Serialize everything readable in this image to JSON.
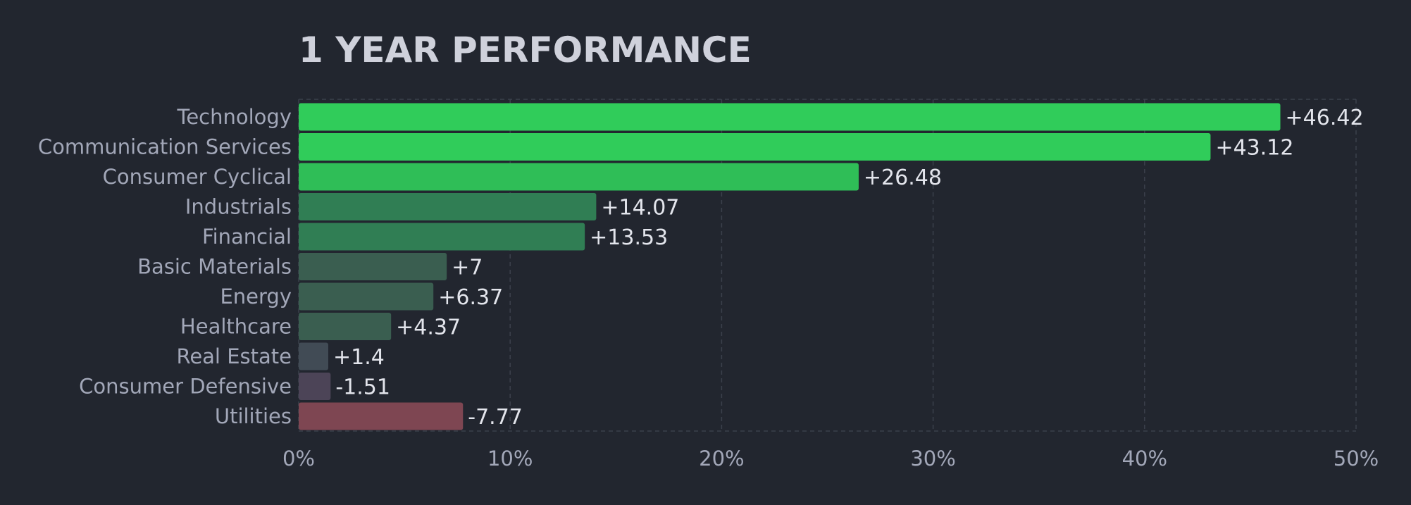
{
  "chart_data": {
    "type": "bar",
    "orientation": "horizontal",
    "title": "1 YEAR PERFORMANCE",
    "xlabel": "",
    "ylabel": "",
    "categories": [
      "Technology",
      "Communication Services",
      "Consumer Cyclical",
      "Industrials",
      "Financial",
      "Basic Materials",
      "Energy",
      "Healthcare",
      "Real Estate",
      "Consumer Defensive",
      "Utilities"
    ],
    "values": [
      46.42,
      43.12,
      26.48,
      14.07,
      13.53,
      7,
      6.37,
      4.37,
      1.4,
      -1.51,
      -7.77
    ],
    "value_labels": [
      "+46.42",
      "+43.12",
      "+26.48",
      "+14.07",
      "+13.53",
      "+7",
      "+6.37",
      "+4.37",
      "+1.4",
      "-1.51",
      "-7.77"
    ],
    "bar_colors": [
      "#30cc5a",
      "#30cc5a",
      "#2fbe57",
      "#307e54",
      "#307e54",
      "#3a5e50",
      "#3a5e50",
      "#3a5e50",
      "#414b55",
      "#4c4457",
      "#7e4652"
    ],
    "bar_length_basis": "absolute value",
    "xlim": [
      0,
      50
    ],
    "xticks": [
      0,
      10,
      20,
      30,
      40,
      50
    ],
    "xtick_labels": [
      "0%",
      "10%",
      "20%",
      "30%",
      "40%",
      "50%"
    ],
    "grid": true,
    "legend": "none"
  }
}
